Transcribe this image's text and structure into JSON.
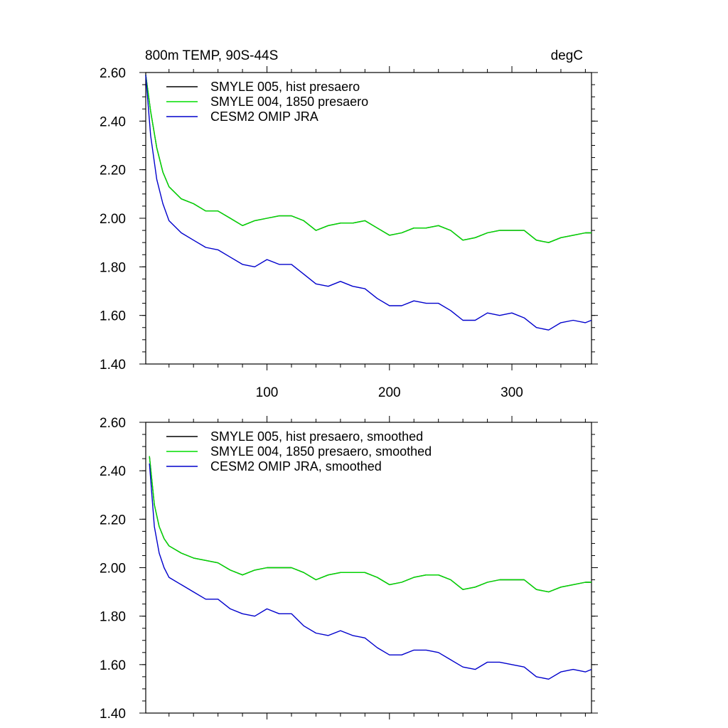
{
  "colors": {
    "black": "#000000",
    "green": "#00dd00",
    "blue": "#0000cc"
  },
  "chart_data": [
    {
      "type": "line",
      "title_left": "800m TEMP, 90S-44S",
      "title_right": "degC",
      "xlabel": "",
      "ylabel": "",
      "xlim": [
        1,
        365
      ],
      "ylim": [
        1.4,
        2.6
      ],
      "yticks": [
        "1.40",
        "1.60",
        "1.80",
        "2.00",
        "2.20",
        "2.40",
        "2.60"
      ],
      "xticks": [
        "100",
        "200",
        "300"
      ],
      "grid": false,
      "legend_placement": "top-left",
      "series": [
        {
          "name": "SMYLE 005, hist presaero",
          "color": "#000000",
          "x": [
            1,
            5,
            10,
            15,
            20,
            30,
            40,
            50,
            60,
            70,
            80,
            90,
            100,
            110,
            120,
            130,
            140,
            150,
            160,
            170,
            180,
            190,
            200,
            210,
            220,
            230,
            240,
            250,
            260,
            270,
            280,
            290,
            300,
            310,
            320,
            330,
            340,
            350,
            360,
            365
          ],
          "values": [
            2.59,
            2.44,
            2.29,
            2.19,
            2.13,
            2.08,
            2.06,
            2.03,
            2.03,
            2.0,
            1.97,
            1.99,
            2.0,
            2.01,
            2.01,
            1.99,
            1.95,
            1.97,
            1.98,
            1.98,
            1.99,
            1.96,
            1.93,
            1.94,
            1.96,
            1.96,
            1.97,
            1.95,
            1.91,
            1.92,
            1.94,
            1.95,
            1.95,
            1.95,
            1.91,
            1.9,
            1.92,
            1.93,
            1.94,
            1.94
          ]
        },
        {
          "name": "SMYLE 004, 1850 presaero",
          "color": "#00dd00",
          "x": [
            1,
            5,
            10,
            15,
            20,
            30,
            40,
            50,
            60,
            70,
            80,
            90,
            100,
            110,
            120,
            130,
            140,
            150,
            160,
            170,
            180,
            190,
            200,
            210,
            220,
            230,
            240,
            250,
            260,
            270,
            280,
            290,
            300,
            310,
            320,
            330,
            340,
            350,
            360,
            365
          ],
          "values": [
            2.59,
            2.44,
            2.29,
            2.19,
            2.13,
            2.08,
            2.06,
            2.03,
            2.03,
            2.0,
            1.97,
            1.99,
            2.0,
            2.01,
            2.01,
            1.99,
            1.95,
            1.97,
            1.98,
            1.98,
            1.99,
            1.96,
            1.93,
            1.94,
            1.96,
            1.96,
            1.97,
            1.95,
            1.91,
            1.92,
            1.94,
            1.95,
            1.95,
            1.95,
            1.91,
            1.9,
            1.92,
            1.93,
            1.94,
            1.94
          ]
        },
        {
          "name": "CESM2 OMIP JRA",
          "color": "#0000cc",
          "x": [
            1,
            5,
            10,
            15,
            20,
            30,
            40,
            50,
            60,
            70,
            80,
            90,
            100,
            110,
            120,
            130,
            140,
            150,
            160,
            170,
            180,
            190,
            200,
            210,
            220,
            230,
            240,
            250,
            260,
            270,
            280,
            290,
            300,
            310,
            320,
            330,
            340,
            350,
            360,
            365
          ],
          "values": [
            2.59,
            2.34,
            2.16,
            2.06,
            1.99,
            1.94,
            1.91,
            1.88,
            1.87,
            1.84,
            1.81,
            1.8,
            1.83,
            1.81,
            1.81,
            1.77,
            1.73,
            1.72,
            1.74,
            1.72,
            1.71,
            1.67,
            1.64,
            1.64,
            1.66,
            1.65,
            1.65,
            1.62,
            1.58,
            1.58,
            1.61,
            1.6,
            1.61,
            1.59,
            1.55,
            1.54,
            1.57,
            1.58,
            1.57,
            1.58
          ]
        }
      ]
    },
    {
      "type": "line",
      "title_left": "",
      "title_right": "",
      "xlabel": "",
      "ylabel": "",
      "xlim": [
        1,
        365
      ],
      "ylim": [
        1.4,
        2.6
      ],
      "yticks": [
        "1.40",
        "1.60",
        "1.80",
        "2.00",
        "2.20",
        "2.40",
        "2.60"
      ],
      "xticks": [],
      "grid": false,
      "legend_placement": "top-left",
      "series": [
        {
          "name": "SMYLE 005, hist presaero, smoothed",
          "color": "#000000",
          "x": [
            4,
            8,
            12,
            16,
            20,
            30,
            40,
            50,
            60,
            70,
            80,
            90,
            100,
            110,
            120,
            130,
            140,
            150,
            160,
            170,
            180,
            190,
            200,
            210,
            220,
            230,
            240,
            250,
            260,
            270,
            280,
            290,
            300,
            310,
            320,
            330,
            340,
            350,
            360,
            365
          ],
          "values": [
            2.46,
            2.26,
            2.17,
            2.12,
            2.09,
            2.06,
            2.04,
            2.03,
            2.02,
            1.99,
            1.97,
            1.99,
            2.0,
            2.0,
            2.0,
            1.98,
            1.95,
            1.97,
            1.98,
            1.98,
            1.98,
            1.96,
            1.93,
            1.94,
            1.96,
            1.97,
            1.97,
            1.95,
            1.91,
            1.92,
            1.94,
            1.95,
            1.95,
            1.95,
            1.91,
            1.9,
            1.92,
            1.93,
            1.94,
            1.94
          ]
        },
        {
          "name": "SMYLE 004, 1850 presaero, smoothed",
          "color": "#00dd00",
          "x": [
            4,
            8,
            12,
            16,
            20,
            30,
            40,
            50,
            60,
            70,
            80,
            90,
            100,
            110,
            120,
            130,
            140,
            150,
            160,
            170,
            180,
            190,
            200,
            210,
            220,
            230,
            240,
            250,
            260,
            270,
            280,
            290,
            300,
            310,
            320,
            330,
            340,
            350,
            360,
            365
          ],
          "values": [
            2.46,
            2.26,
            2.17,
            2.12,
            2.09,
            2.06,
            2.04,
            2.03,
            2.02,
            1.99,
            1.97,
            1.99,
            2.0,
            2.0,
            2.0,
            1.98,
            1.95,
            1.97,
            1.98,
            1.98,
            1.98,
            1.96,
            1.93,
            1.94,
            1.96,
            1.97,
            1.97,
            1.95,
            1.91,
            1.92,
            1.94,
            1.95,
            1.95,
            1.95,
            1.91,
            1.9,
            1.92,
            1.93,
            1.94,
            1.94
          ]
        },
        {
          "name": "CESM2 OMIP JRA, smoothed",
          "color": "#0000cc",
          "x": [
            4,
            8,
            12,
            16,
            20,
            30,
            40,
            50,
            60,
            70,
            80,
            90,
            100,
            110,
            120,
            130,
            140,
            150,
            160,
            170,
            180,
            190,
            200,
            210,
            220,
            230,
            240,
            250,
            260,
            270,
            280,
            290,
            300,
            310,
            320,
            330,
            340,
            350,
            360,
            365
          ],
          "values": [
            2.43,
            2.17,
            2.06,
            2.0,
            1.96,
            1.93,
            1.9,
            1.87,
            1.87,
            1.83,
            1.81,
            1.8,
            1.83,
            1.81,
            1.81,
            1.76,
            1.73,
            1.72,
            1.74,
            1.72,
            1.71,
            1.67,
            1.64,
            1.64,
            1.66,
            1.66,
            1.65,
            1.62,
            1.59,
            1.58,
            1.61,
            1.61,
            1.6,
            1.59,
            1.55,
            1.54,
            1.57,
            1.58,
            1.57,
            1.58
          ]
        }
      ]
    }
  ]
}
